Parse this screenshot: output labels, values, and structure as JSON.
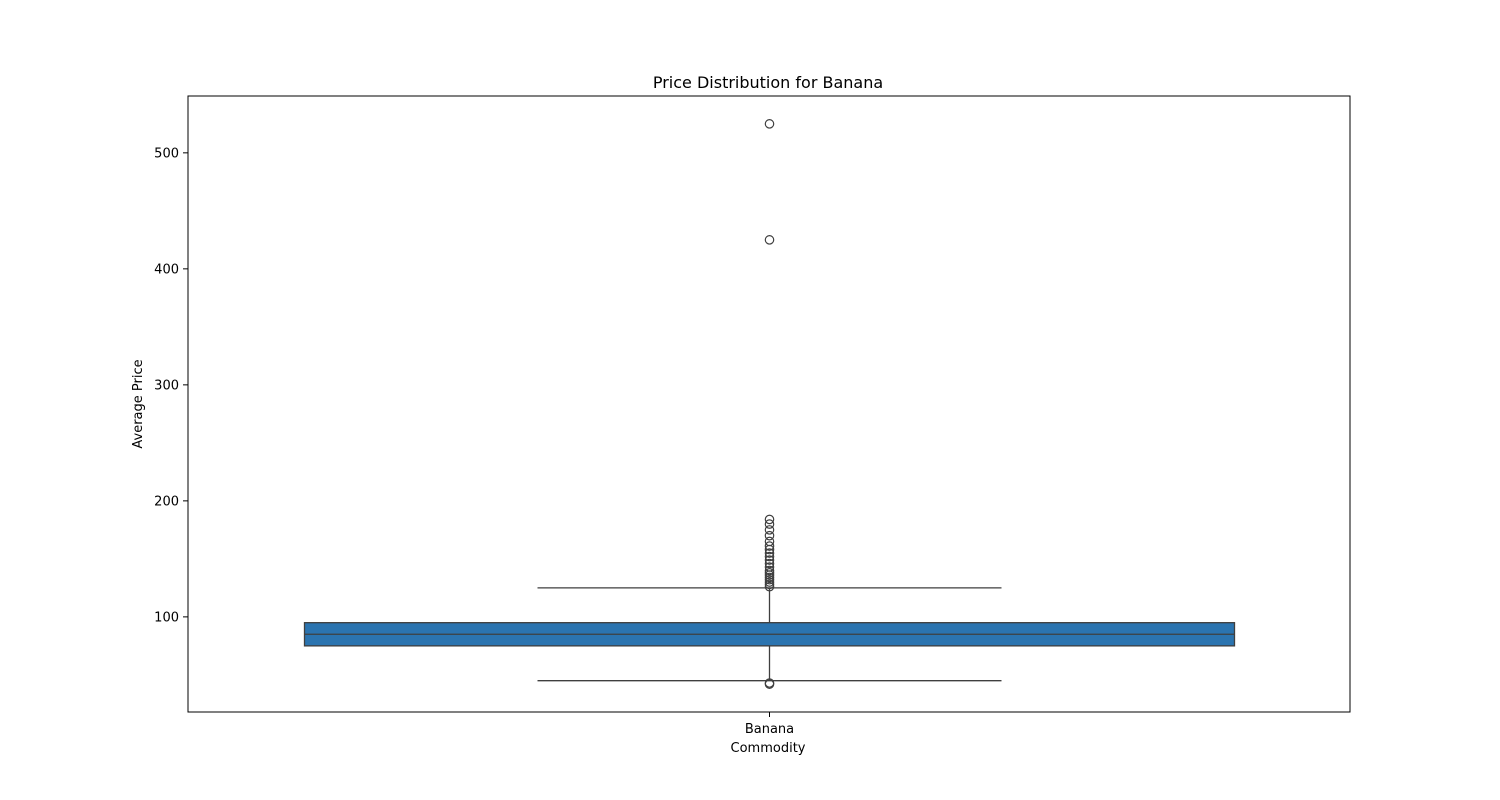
{
  "chart_data": {
    "type": "box",
    "title": "Price Distribution for Banana",
    "xlabel": "Commodity",
    "ylabel": "Average Price",
    "categories": [
      "Banana"
    ],
    "ylim": [
      18,
      549
    ],
    "yticks": [
      100,
      200,
      300,
      400,
      500
    ],
    "grid": false,
    "legend": "none",
    "box": {
      "category": "Banana",
      "q1": 75,
      "median": 85,
      "q3": 95,
      "whisker_low": 45,
      "whisker_high": 125,
      "outliers": [
        42,
        43,
        126,
        128,
        130,
        132,
        134,
        136,
        138,
        140,
        143,
        146,
        149,
        152,
        155,
        158,
        161,
        165,
        170,
        175,
        180,
        184,
        425,
        525
      ]
    },
    "colors": {
      "box_fill": "#2b74b0",
      "line": "#3f3f3f",
      "axis": "#000000"
    }
  }
}
